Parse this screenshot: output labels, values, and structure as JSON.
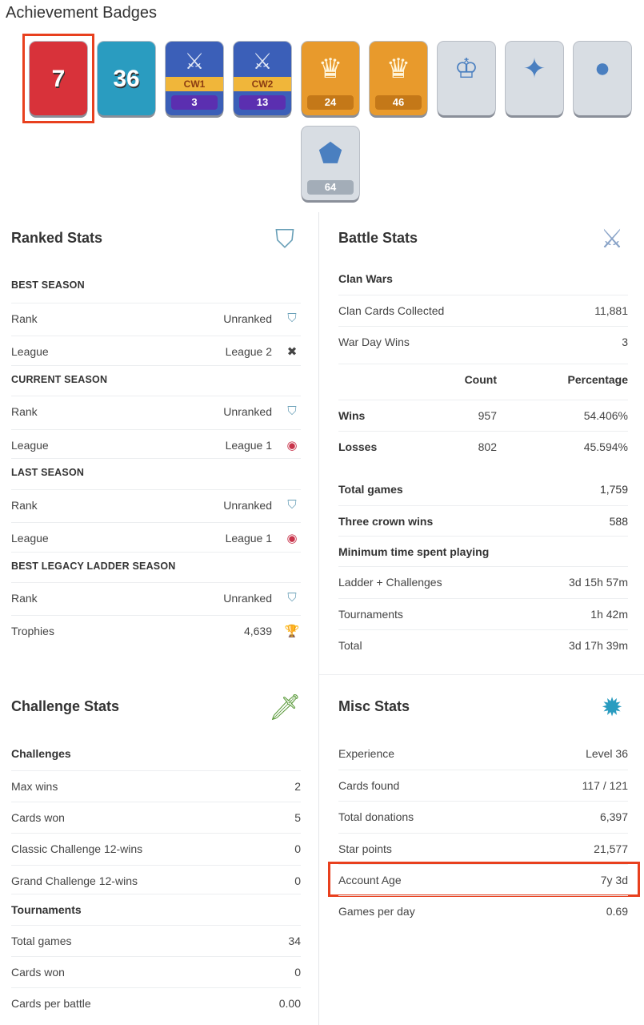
{
  "title": "Achievement Badges",
  "badges": [
    {
      "name": "years-played-badge",
      "label": "7",
      "bg": "#d8323a",
      "style": "big",
      "highlighted": true
    },
    {
      "name": "level-badge",
      "label": "36",
      "bg": "#2a9cc0",
      "style": "big"
    },
    {
      "name": "cw1-badge",
      "tag": "CW1",
      "label": "3",
      "bg": "#3b5fb8",
      "numbg": "#5b2fb0"
    },
    {
      "name": "cw2-badge",
      "tag": "CW2",
      "label": "13",
      "bg": "#3b5fb8",
      "numbg": "#5b2fb0"
    },
    {
      "name": "crown-card-badge",
      "label": "24",
      "bg": "#e89a2c",
      "numbg": "#c47818",
      "icon": "♛"
    },
    {
      "name": "crown-flag-badge",
      "label": "46",
      "bg": "#e89a2c",
      "numbg": "#c47818",
      "icon": "♛"
    },
    {
      "name": "crown-frame-badge",
      "label": "",
      "bg": "#d8dde3",
      "icon": "♔"
    },
    {
      "name": "purple-cards-badge",
      "label": "",
      "bg": "#d8dde3",
      "icon": "✦"
    },
    {
      "name": "gold-medal-badge",
      "label": "",
      "bg": "#d8dde3",
      "icon": "●"
    },
    {
      "name": "card-collection-badge",
      "label": "64",
      "bg": "#d8dde3",
      "numbg": "#a3adb8",
      "icon": "⬟"
    }
  ],
  "ranked": {
    "title": "Ranked Stats",
    "icon": "shield-icon",
    "rows": [
      {
        "type": "head",
        "label": "BEST SEASON"
      },
      {
        "label": "Rank",
        "value": "Unranked",
        "icon": "⛉",
        "iconName": "unranked-shield-icon"
      },
      {
        "label": "League",
        "value": "League 2",
        "icon": "✖",
        "iconName": "league-icon"
      },
      {
        "type": "head",
        "label": "CURRENT SEASON"
      },
      {
        "label": "Rank",
        "value": "Unranked",
        "icon": "⛉",
        "iconName": "unranked-shield-icon"
      },
      {
        "label": "League",
        "value": "League 1",
        "icon": "◉",
        "iconName": "league-icon"
      },
      {
        "type": "head",
        "label": "LAST SEASON"
      },
      {
        "label": "Rank",
        "value": "Unranked",
        "icon": "⛉",
        "iconName": "unranked-shield-icon"
      },
      {
        "label": "League",
        "value": "League 1",
        "icon": "◉",
        "iconName": "league-icon"
      },
      {
        "type": "head",
        "label": "BEST LEGACY LADDER SEASON"
      },
      {
        "label": "Rank",
        "value": "Unranked",
        "icon": "⛉",
        "iconName": "unranked-shield-icon"
      },
      {
        "label": "Trophies",
        "value": "4,639",
        "icon": "🏆",
        "iconName": "trophy-icon"
      }
    ]
  },
  "battle": {
    "title": "Battle Stats",
    "icon": "crossed-swords-icon",
    "rows": [
      {
        "type": "sub",
        "label": "Clan Wars"
      },
      {
        "label": "Clan Cards Collected",
        "value": "11,881"
      },
      {
        "label": "War Day Wins",
        "value": "3"
      },
      {
        "type": "cols",
        "label": "",
        "count": "Count",
        "pct": "Percentage"
      },
      {
        "type": "wl",
        "label": "Wins",
        "count": "957",
        "pct": "54.406%"
      },
      {
        "type": "wl",
        "label": "Losses",
        "count": "802",
        "pct": "45.594%"
      },
      {
        "type": "bold",
        "label": "Total games",
        "value": "1,759"
      },
      {
        "type": "bold",
        "label": "Three crown wins",
        "value": "588"
      },
      {
        "type": "sub",
        "label": "Minimum time spent playing"
      },
      {
        "label": "Ladder + Challenges",
        "value": "3d 15h 57m"
      },
      {
        "label": "Tournaments",
        "value": "1h 42m"
      },
      {
        "label": "Total",
        "value": "3d 17h 39m"
      }
    ]
  },
  "challenge": {
    "title": "Challenge Stats",
    "icon": "sword-laurel-icon",
    "rows": [
      {
        "type": "sub",
        "label": "Challenges"
      },
      {
        "label": "Max wins",
        "value": "2"
      },
      {
        "label": "Cards won",
        "value": "5"
      },
      {
        "label": "Classic Challenge 12-wins",
        "value": "0"
      },
      {
        "label": "Grand Challenge 12-wins",
        "value": "0"
      },
      {
        "type": "sub",
        "label": "Tournaments"
      },
      {
        "label": "Total games",
        "value": "34"
      },
      {
        "label": "Cards won",
        "value": "0"
      },
      {
        "label": "Cards per battle",
        "value": "0.00"
      }
    ]
  },
  "misc": {
    "title": "Misc Stats",
    "icon": "level-star-icon",
    "rows": [
      {
        "label": "Experience",
        "value": "Level 36"
      },
      {
        "label": "Cards found",
        "value": "117 / 121"
      },
      {
        "label": "Total donations",
        "value": "6,397"
      },
      {
        "label": "Star points",
        "value": "21,577"
      },
      {
        "label": "Account Age",
        "value": "7y 3d",
        "highlighted": true
      },
      {
        "label": "Games per day",
        "value": "0.69"
      }
    ]
  },
  "colors": {
    "highlight": "#e8401e"
  }
}
